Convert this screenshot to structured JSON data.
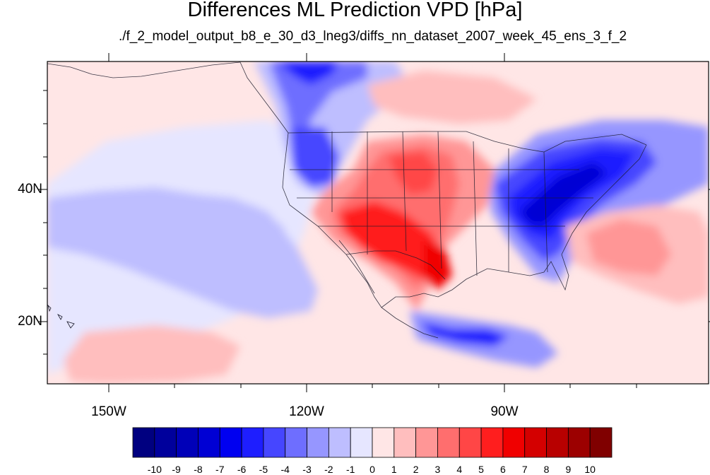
{
  "title": "Differences ML Prediction VPD [hPa]",
  "subtitle": "./f_2_model_output_b8_e_30_d3_lneg3/diffs_nn_dataset_2007_week_45_ens_3_f_2",
  "map": {
    "lat_labels": [
      "40N",
      "20N"
    ],
    "lon_labels": [
      "150W",
      "120W",
      "90W"
    ],
    "extent": {
      "lon": [
        -160,
        -60
      ],
      "lat": [
        10,
        59
      ]
    }
  },
  "colorbar": {
    "labels": [
      "-10",
      "-9",
      "-8",
      "-7",
      "-6",
      "-5",
      "-4",
      "-3",
      "-2",
      "-1",
      "0",
      "1",
      "2",
      "3",
      "4",
      "5",
      "6",
      "7",
      "8",
      "9",
      "10"
    ],
    "colors": [
      "#000080",
      "#00009c",
      "#0000b8",
      "#0000d4",
      "#0000f0",
      "#1e1eff",
      "#4646ff",
      "#6e6eff",
      "#9696ff",
      "#bebeff",
      "#e6e6ff",
      "#ffe6e6",
      "#ffbebe",
      "#ff9696",
      "#ff6e6e",
      "#ff4646",
      "#ff1e1e",
      "#f00000",
      "#d40000",
      "#b80000",
      "#9c0000",
      "#800000"
    ]
  }
}
